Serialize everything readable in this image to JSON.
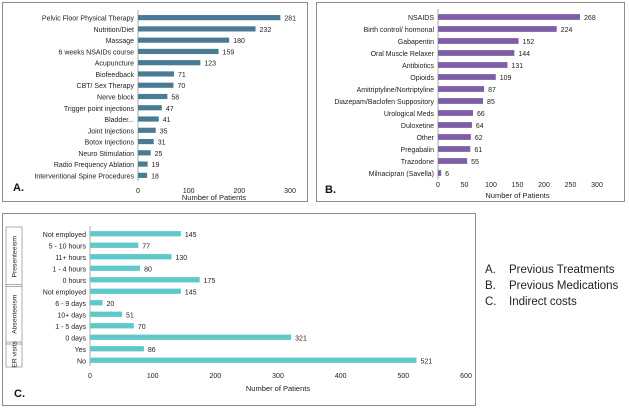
{
  "chart_data": [
    {
      "id": "A",
      "type": "bar",
      "orientation": "horizontal",
      "panel_label": "A.",
      "xlabel": "Number of Patients",
      "xlim": [
        0,
        300
      ],
      "xticks": [
        0,
        100,
        200,
        300
      ],
      "color": "#4a7b95",
      "categories": [
        "Pelvic Floor Physical Therapy",
        "Nutrition/Diet",
        "Massage",
        "6 weeks NSAIDs course",
        "Acupuncture",
        "Biofeedback",
        "CBT/ Sex Therapy",
        "Nerve block",
        "Trigger point injections",
        "Bladder...",
        "Joint Injections",
        "Botox Injections",
        "Neuro Stimulation",
        "Radio Frequency Ablation",
        "Interventional Spine Procedures"
      ],
      "values": [
        281,
        232,
        180,
        159,
        123,
        71,
        70,
        58,
        47,
        41,
        35,
        31,
        25,
        19,
        18
      ]
    },
    {
      "id": "B",
      "type": "bar",
      "orientation": "horizontal",
      "panel_label": "B.",
      "xlabel": "Number of Patients",
      "xlim": [
        0,
        300
      ],
      "xticks": [
        0,
        50,
        100,
        150,
        200,
        250,
        300
      ],
      "color": "#7e5ea6",
      "categories": [
        "NSAIDS",
        "Birth control/ hormonal",
        "Gabapentin",
        "Oral Muscle Relaxer",
        "Antibiotics",
        "Opioids",
        "Amitriptyline/Nortriptyline",
        "Diazepam/Baclofen Suppository",
        "Urological Meds",
        "Duloxetine",
        "Other",
        "Pregabalin",
        "Trazodone",
        "Milnacipran (Savella)"
      ],
      "values": [
        268,
        224,
        152,
        144,
        131,
        109,
        87,
        85,
        66,
        64,
        62,
        61,
        55,
        6
      ]
    },
    {
      "id": "C",
      "type": "bar",
      "orientation": "horizontal",
      "panel_label": "C.",
      "xlabel": "Number of Patients",
      "xlim": [
        0,
        600
      ],
      "xticks": [
        0,
        100,
        200,
        300,
        400,
        500,
        600
      ],
      "color": "#5fc8c8",
      "groups": [
        {
          "name": "Presenteeism",
          "categories": [
            "Not employed",
            "5 - 10 hours",
            "11+ hours",
            "1 - 4 hours",
            "0 hours"
          ],
          "values": [
            145,
            77,
            130,
            80,
            175
          ]
        },
        {
          "name": "Absenteeism",
          "categories": [
            "Not employed",
            "6 - 9 days",
            "10+ days",
            "1 - 5 days",
            "0 days"
          ],
          "values": [
            145,
            20,
            51,
            70,
            321
          ]
        },
        {
          "name": "ER visits",
          "categories": [
            "Yes",
            "No"
          ],
          "values": [
            86,
            521
          ]
        }
      ]
    }
  ],
  "legend": [
    {
      "key": "A.",
      "text": "Previous Treatments"
    },
    {
      "key": "B.",
      "text": "Previous Medications"
    },
    {
      "key": "C.",
      "text": "Indirect costs"
    }
  ]
}
